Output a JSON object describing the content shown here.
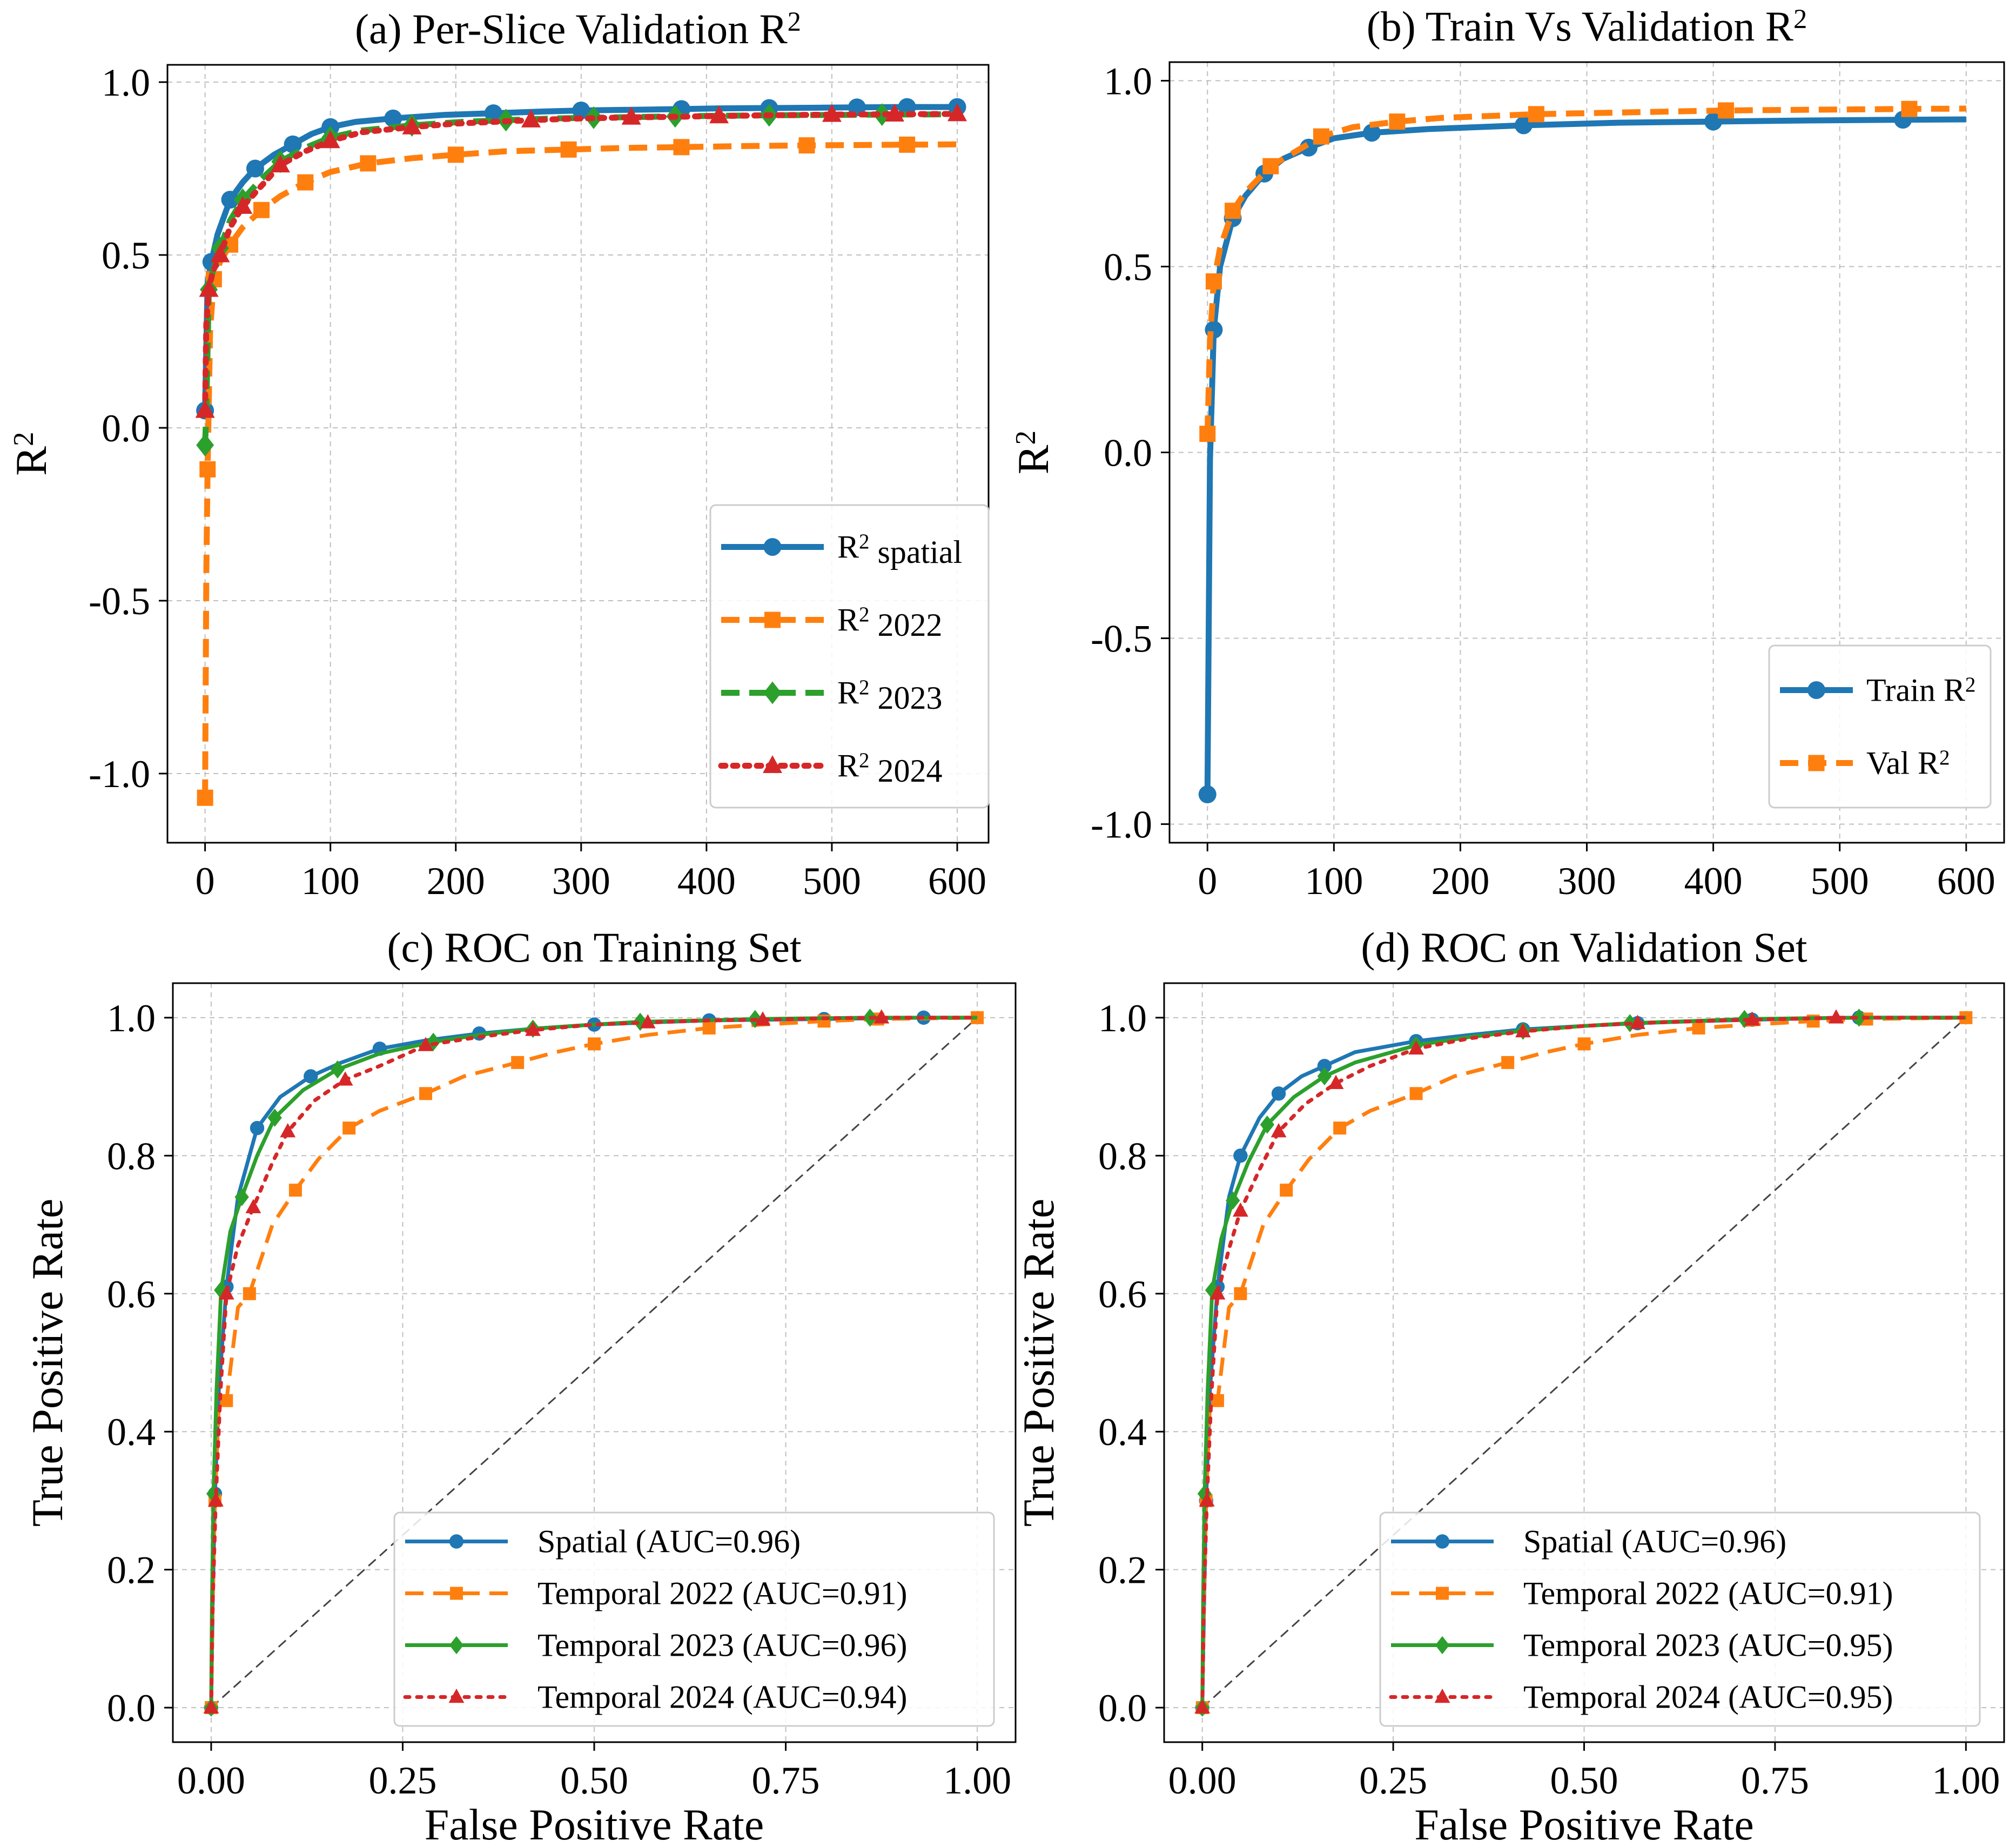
{
  "chart_data": [
    {
      "id": "a",
      "type": "line",
      "title": "(a) Per-Slice Validation R",
      "title_sup": "2",
      "xlabel": "",
      "ylabel": "R",
      "ylabel_sup": "2",
      "xlim": [
        -30,
        625
      ],
      "ylim": [
        -1.2,
        1.05
      ],
      "xticks": [
        0,
        100,
        200,
        300,
        400,
        500,
        600
      ],
      "xtick_labels": [
        "0",
        "100",
        "200",
        "300",
        "400",
        "500",
        "600"
      ],
      "yticks": [
        -1.0,
        -0.5,
        0.0,
        0.5,
        1.0
      ],
      "ytick_labels": [
        "-1.0",
        "-0.5",
        "0.0",
        "0.5",
        "1.0"
      ],
      "grid": true,
      "legend_position": "lower-right",
      "series": [
        {
          "name": "R",
          "name_sup": "2",
          "name_rest": " spatial",
          "color": "#1f77b4",
          "style": "solid",
          "marker": "circle",
          "x": [
            0,
            2,
            5,
            10,
            20,
            30,
            40,
            55,
            70,
            85,
            100,
            120,
            150,
            190,
            230,
            270,
            300,
            340,
            380,
            410,
            450,
            490,
            520,
            560,
            600
          ],
          "y": [
            0.05,
            0.42,
            0.48,
            0.56,
            0.66,
            0.71,
            0.75,
            0.79,
            0.82,
            0.85,
            0.87,
            0.885,
            0.895,
            0.905,
            0.91,
            0.915,
            0.918,
            0.92,
            0.922,
            0.924,
            0.925,
            0.926,
            0.927,
            0.928,
            0.928
          ]
        },
        {
          "name": "R",
          "name_sup": "2",
          "name_rest": " 2022",
          "color": "#ff7f0e",
          "style": "dashed",
          "marker": "square",
          "x": [
            0,
            1,
            2,
            4,
            7,
            12,
            20,
            30,
            45,
            60,
            80,
            100,
            130,
            165,
            200,
            240,
            290,
            340,
            380,
            430,
            480,
            520,
            560,
            600
          ],
          "y": [
            -1.07,
            -0.42,
            -0.12,
            0.28,
            0.43,
            0.48,
            0.53,
            0.58,
            0.63,
            0.67,
            0.71,
            0.74,
            0.765,
            0.78,
            0.79,
            0.8,
            0.805,
            0.81,
            0.812,
            0.815,
            0.817,
            0.818,
            0.819,
            0.82
          ]
        },
        {
          "name": "R",
          "name_sup": "2",
          "name_rest": " 2023",
          "color": "#2ca02c",
          "style": "dashed",
          "marker": "diamond",
          "x": [
            0,
            1,
            3,
            6,
            12,
            20,
            30,
            45,
            60,
            80,
            100,
            125,
            165,
            205,
            240,
            280,
            310,
            345,
            375,
            420,
            450,
            500,
            540,
            600
          ],
          "y": [
            -0.05,
            0.05,
            0.4,
            0.45,
            0.52,
            0.6,
            0.66,
            0.72,
            0.77,
            0.81,
            0.84,
            0.86,
            0.875,
            0.885,
            0.89,
            0.895,
            0.897,
            0.899,
            0.901,
            0.903,
            0.904,
            0.905,
            0.906,
            0.907
          ]
        },
        {
          "name": "R",
          "name_sup": "2",
          "name_rest": " 2024",
          "color": "#d62728",
          "style": "dotted",
          "marker": "triangle",
          "x": [
            0,
            1,
            3,
            6,
            12,
            20,
            30,
            45,
            60,
            80,
            100,
            125,
            165,
            200,
            260,
            300,
            340,
            380,
            410,
            450,
            500,
            550,
            600
          ],
          "y": [
            0.05,
            0.3,
            0.4,
            0.45,
            0.5,
            0.58,
            0.64,
            0.7,
            0.76,
            0.8,
            0.83,
            0.855,
            0.87,
            0.88,
            0.89,
            0.895,
            0.898,
            0.9,
            0.902,
            0.904,
            0.906,
            0.907,
            0.908
          ]
        }
      ]
    },
    {
      "id": "b",
      "type": "line",
      "title": "(b) Train Vs Validation R",
      "title_sup": "2",
      "xlabel": "",
      "ylabel": "R",
      "ylabel_sup": "2",
      "xlim": [
        -30,
        630
      ],
      "ylim": [
        -1.05,
        1.05
      ],
      "xticks": [
        0,
        100,
        200,
        300,
        400,
        500,
        600
      ],
      "xtick_labels": [
        "0",
        "100",
        "200",
        "300",
        "400",
        "500",
        "600"
      ],
      "yticks": [
        -1.0,
        -0.5,
        0.0,
        0.5,
        1.0
      ],
      "ytick_labels": [
        "-1.0",
        "-0.5",
        "0.0",
        "0.5",
        "1.0"
      ],
      "grid": true,
      "legend_position": "lower-right",
      "series": [
        {
          "name": "Train R",
          "name_sup": "2",
          "name_rest": "",
          "color": "#1f77b4",
          "style": "solid",
          "marker": "circle",
          "x": [
            0,
            2,
            5,
            10,
            20,
            30,
            45,
            60,
            80,
            100,
            130,
            175,
            250,
            325,
            400,
            475,
            550,
            600
          ],
          "y": [
            -0.92,
            -0.02,
            0.33,
            0.5,
            0.63,
            0.69,
            0.75,
            0.79,
            0.82,
            0.845,
            0.86,
            0.87,
            0.88,
            0.887,
            0.89,
            0.893,
            0.895,
            0.896
          ]
        },
        {
          "name": "Val R",
          "name_sup": "2",
          "name_rest": "",
          "color": "#ff7f0e",
          "style": "dashed",
          "marker": "square",
          "x": [
            0,
            2,
            5,
            10,
            20,
            30,
            50,
            70,
            90,
            115,
            150,
            185,
            260,
            335,
            410,
            480,
            555,
            600
          ],
          "y": [
            0.05,
            0.3,
            0.46,
            0.55,
            0.65,
            0.7,
            0.77,
            0.81,
            0.85,
            0.875,
            0.89,
            0.9,
            0.91,
            0.915,
            0.92,
            0.922,
            0.924,
            0.925
          ]
        }
      ]
    },
    {
      "id": "c",
      "type": "line",
      "title": "(c) ROC on Training Set",
      "xlabel": "False Positive Rate",
      "ylabel": "True Positive Rate",
      "xlim": [
        -0.05,
        1.05
      ],
      "ylim": [
        -0.05,
        1.05
      ],
      "xticks": [
        0,
        0.25,
        0.5,
        0.75,
        1.0
      ],
      "xtick_labels": [
        "0.00",
        "0.25",
        "0.50",
        "0.75",
        "1.00"
      ],
      "yticks": [
        0,
        0.2,
        0.4,
        0.6,
        0.8,
        1.0
      ],
      "ytick_labels": [
        "0.0",
        "0.2",
        "0.4",
        "0.6",
        "0.8",
        "1.0"
      ],
      "grid": true,
      "legend_position": "lower-right",
      "series": [
        {
          "name": "Spatial (AUC=0.96)",
          "color": "#1f77b4",
          "style": "solid",
          "marker": "circle",
          "x": [
            0,
            0.002,
            0.005,
            0.01,
            0.02,
            0.035,
            0.06,
            0.09,
            0.13,
            0.17,
            0.22,
            0.28,
            0.35,
            0.42,
            0.5,
            0.57,
            0.65,
            0.72,
            0.8,
            0.86,
            0.93,
            1.0
          ],
          "y": [
            0,
            0.15,
            0.31,
            0.46,
            0.61,
            0.74,
            0.84,
            0.885,
            0.915,
            0.935,
            0.955,
            0.967,
            0.977,
            0.984,
            0.99,
            0.993,
            0.996,
            0.997,
            0.998,
            0.999,
            1.0,
            1.0
          ]
        },
        {
          "name": "Temporal 2022 (AUC=0.91)",
          "color": "#ff7f0e",
          "style": "dashed",
          "marker": "square",
          "x": [
            0,
            0.002,
            0.005,
            0.01,
            0.02,
            0.035,
            0.05,
            0.08,
            0.11,
            0.14,
            0.18,
            0.22,
            0.28,
            0.33,
            0.4,
            0.45,
            0.5,
            0.57,
            0.65,
            0.72,
            0.8,
            0.87,
            1.0
          ],
          "y": [
            0,
            0.15,
            0.3,
            0.44,
            0.445,
            0.58,
            0.6,
            0.7,
            0.75,
            0.795,
            0.84,
            0.865,
            0.89,
            0.915,
            0.935,
            0.95,
            0.962,
            0.975,
            0.985,
            0.99,
            0.995,
            0.998,
            1.0
          ]
        },
        {
          "name": "Temporal 2023 (AUC=0.96)",
          "color": "#2ca02c",
          "style": "solid",
          "marker": "diamond",
          "x": [
            0,
            0.001,
            0.003,
            0.007,
            0.013,
            0.025,
            0.04,
            0.06,
            0.083,
            0.12,
            0.165,
            0.22,
            0.29,
            0.35,
            0.42,
            0.5,
            0.56,
            0.64,
            0.71,
            0.78,
            0.86,
            1.0
          ],
          "y": [
            0,
            0.15,
            0.31,
            0.46,
            0.605,
            0.69,
            0.74,
            0.8,
            0.855,
            0.895,
            0.925,
            0.948,
            0.965,
            0.975,
            0.984,
            0.99,
            0.994,
            0.996,
            0.998,
            0.999,
            1.0,
            1.0
          ]
        },
        {
          "name": "Temporal 2024 (AUC=0.94)",
          "color": "#d62728",
          "style": "dotted",
          "marker": "triangle",
          "x": [
            0,
            0.002,
            0.006,
            0.012,
            0.02,
            0.035,
            0.055,
            0.08,
            0.1,
            0.135,
            0.175,
            0.22,
            0.28,
            0.35,
            0.42,
            0.5,
            0.57,
            0.65,
            0.72,
            0.8,
            0.875,
            1.0
          ],
          "y": [
            0,
            0.15,
            0.3,
            0.455,
            0.6,
            0.67,
            0.725,
            0.79,
            0.835,
            0.88,
            0.91,
            0.93,
            0.96,
            0.972,
            0.982,
            0.99,
            0.993,
            0.996,
            0.997,
            0.999,
            1.0,
            1.0
          ]
        }
      ],
      "reference_line": {
        "x": [
          0,
          1
        ],
        "y": [
          0,
          1
        ],
        "color": "#444444",
        "style": "dashed"
      }
    },
    {
      "id": "d",
      "type": "line",
      "title": "(d) ROC on Validation Set",
      "xlabel": "False Positive Rate",
      "ylabel": "True Positive Rate",
      "xlim": [
        -0.05,
        1.05
      ],
      "ylim": [
        -0.05,
        1.05
      ],
      "xticks": [
        0,
        0.25,
        0.5,
        0.75,
        1.0
      ],
      "xtick_labels": [
        "0.00",
        "0.25",
        "0.50",
        "0.75",
        "1.00"
      ],
      "yticks": [
        0,
        0.2,
        0.4,
        0.6,
        0.8,
        1.0
      ],
      "ytick_labels": [
        "0.0",
        "0.2",
        "0.4",
        "0.6",
        "0.8",
        "1.0"
      ],
      "grid": true,
      "legend_position": "lower-right",
      "series": [
        {
          "name": "Spatial (AUC=0.96)",
          "color": "#1f77b4",
          "style": "solid",
          "marker": "circle",
          "x": [
            0,
            0.002,
            0.005,
            0.01,
            0.02,
            0.035,
            0.05,
            0.075,
            0.1,
            0.13,
            0.16,
            0.2,
            0.28,
            0.35,
            0.42,
            0.5,
            0.57,
            0.65,
            0.72,
            0.8,
            0.86,
            1.0
          ],
          "y": [
            0,
            0.13,
            0.3,
            0.46,
            0.61,
            0.74,
            0.8,
            0.855,
            0.89,
            0.915,
            0.93,
            0.95,
            0.966,
            0.975,
            0.983,
            0.988,
            0.992,
            0.995,
            0.997,
            0.999,
            1.0,
            1.0
          ]
        },
        {
          "name": "Temporal 2022 (AUC=0.91)",
          "color": "#ff7f0e",
          "style": "dashed",
          "marker": "square",
          "x": [
            0,
            0.002,
            0.005,
            0.01,
            0.02,
            0.035,
            0.05,
            0.08,
            0.11,
            0.14,
            0.18,
            0.22,
            0.28,
            0.33,
            0.4,
            0.45,
            0.5,
            0.57,
            0.65,
            0.72,
            0.8,
            0.87,
            1.0
          ],
          "y": [
            0,
            0.15,
            0.3,
            0.44,
            0.445,
            0.58,
            0.6,
            0.7,
            0.75,
            0.795,
            0.84,
            0.865,
            0.89,
            0.915,
            0.935,
            0.95,
            0.962,
            0.975,
            0.985,
            0.99,
            0.995,
            0.998,
            1.0
          ]
        },
        {
          "name": "Temporal 2023 (AUC=0.95)",
          "color": "#2ca02c",
          "style": "solid",
          "marker": "diamond",
          "x": [
            0,
            0.001,
            0.003,
            0.007,
            0.013,
            0.025,
            0.04,
            0.06,
            0.085,
            0.12,
            0.16,
            0.2,
            0.28,
            0.35,
            0.42,
            0.5,
            0.56,
            0.64,
            0.71,
            0.78,
            0.86,
            1.0
          ],
          "y": [
            0,
            0.15,
            0.31,
            0.46,
            0.605,
            0.68,
            0.735,
            0.79,
            0.845,
            0.885,
            0.915,
            0.935,
            0.96,
            0.972,
            0.981,
            0.988,
            0.992,
            0.995,
            0.998,
            0.999,
            1.0,
            1.0
          ]
        },
        {
          "name": "Temporal 2024 (AUC=0.95)",
          "color": "#d62728",
          "style": "dotted",
          "marker": "triangle",
          "x": [
            0,
            0.002,
            0.006,
            0.012,
            0.02,
            0.035,
            0.05,
            0.075,
            0.1,
            0.135,
            0.175,
            0.22,
            0.28,
            0.35,
            0.42,
            0.5,
            0.57,
            0.65,
            0.72,
            0.8,
            0.83,
            1.0
          ],
          "y": [
            0,
            0.15,
            0.3,
            0.455,
            0.6,
            0.665,
            0.72,
            0.78,
            0.835,
            0.875,
            0.905,
            0.93,
            0.955,
            0.97,
            0.98,
            0.988,
            0.992,
            0.995,
            0.997,
            0.999,
            1.0,
            1.0
          ]
        }
      ],
      "reference_line": {
        "x": [
          0,
          1
        ],
        "y": [
          0,
          1
        ],
        "color": "#444444",
        "style": "dashed"
      }
    }
  ]
}
